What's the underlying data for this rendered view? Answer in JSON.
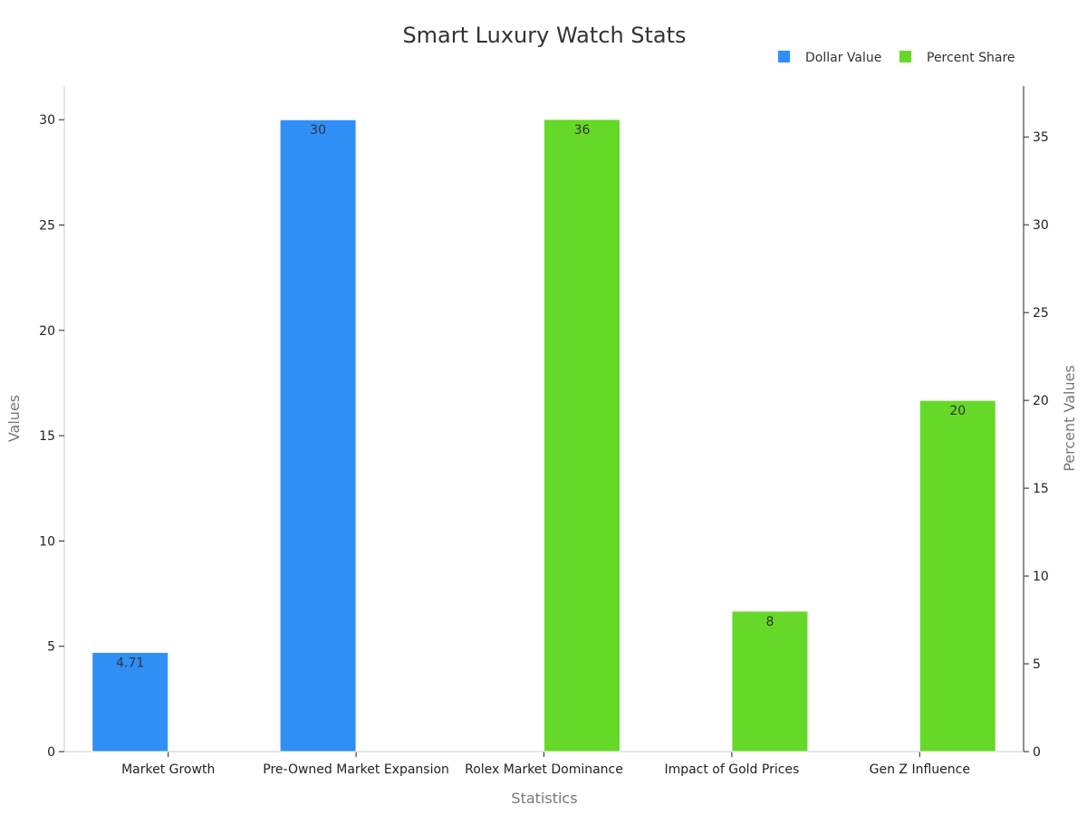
{
  "chart_data": {
    "type": "bar",
    "title": "Smart Luxury Watch Stats",
    "xlabel": "Statistics",
    "ylabel": "Values",
    "y2label": "Percent Values",
    "categories": [
      "Market Growth",
      "Pre-Owned Market Expansion",
      "Rolex Market Dominance",
      "Impact of Gold Prices",
      "Gen Z Influence"
    ],
    "series": [
      {
        "name": "Dollar Value",
        "axis": "left",
        "color": "#2f8ff7",
        "values": [
          4.71,
          30,
          null,
          null,
          null
        ],
        "labels": [
          "4.71",
          "30",
          "",
          "",
          ""
        ]
      },
      {
        "name": "Percent Share",
        "axis": "right",
        "color": "#66d928",
        "values": [
          null,
          null,
          36,
          8,
          20
        ],
        "labels": [
          "",
          "",
          "36",
          "8",
          "20"
        ]
      }
    ],
    "ylim": [
      0,
      31.6
    ],
    "y2lim": [
      0,
      37.9
    ],
    "yticks": [
      0,
      5,
      10,
      15,
      20,
      25,
      30
    ],
    "y2ticks": [
      0,
      5,
      10,
      15,
      20,
      25,
      30,
      35
    ],
    "legend_position": "top-right",
    "grid": false
  }
}
